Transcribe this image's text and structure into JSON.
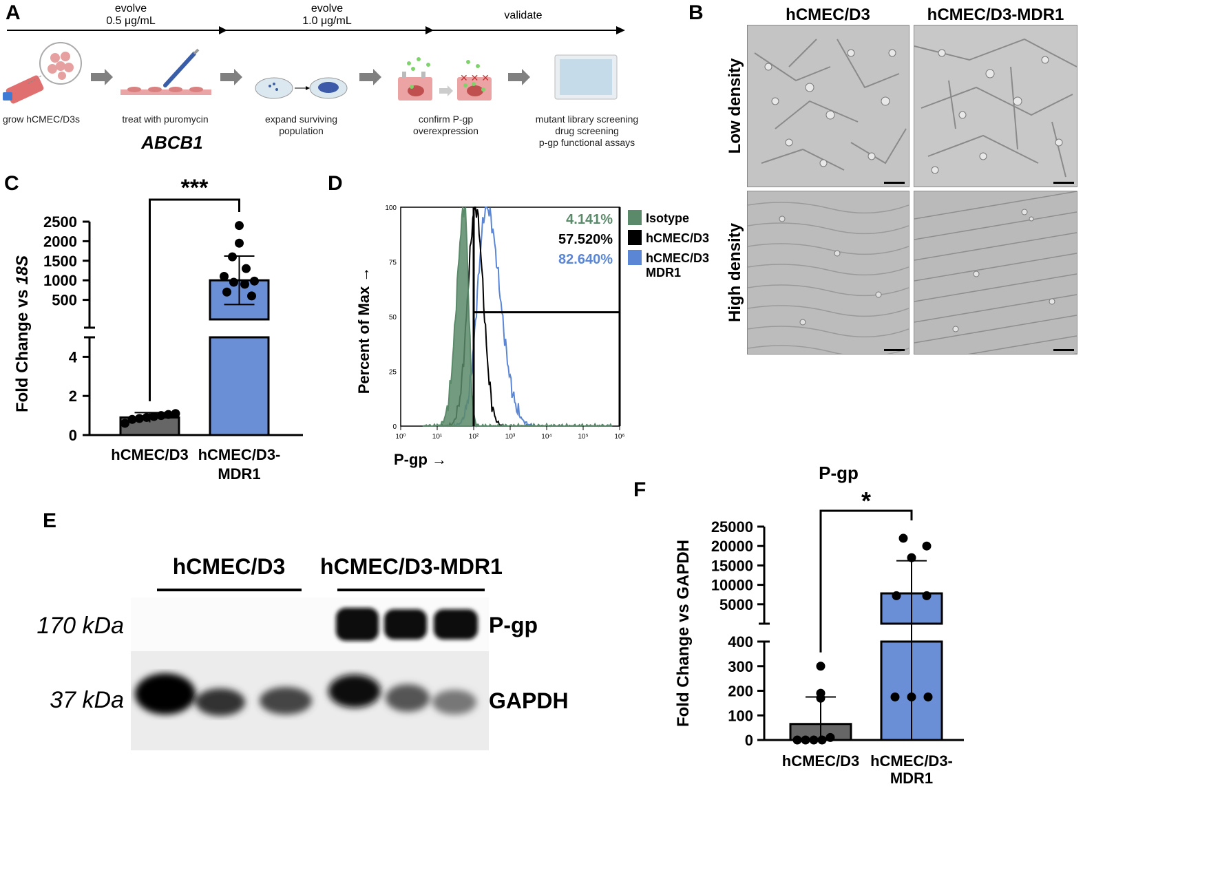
{
  "panels": {
    "a": "A",
    "b": "B",
    "c": "C",
    "d": "D",
    "e": "E",
    "f": "F"
  },
  "panel_a": {
    "timeline": [
      {
        "label1": "evolve",
        "label2": "0.5 μg/mL"
      },
      {
        "label1": "evolve",
        "label2": "1.0 μg/mL"
      },
      {
        "label1": "validate",
        "label2": ""
      }
    ],
    "steps": [
      "grow hCMEC/D3s",
      "treat with puromycin",
      "expand surviving\npopulation",
      "confirm P-gp\noverexpression",
      "mutant library screening\ndrug screening\np-gp functional assays"
    ],
    "gene": "ABCB1",
    "colors": {
      "cell": "#e9a5a5",
      "dish": "#c9dbe6",
      "cell_dark": "#c0504d",
      "plate": "#c6dbea",
      "dye": "#7ed36b",
      "arrow": "#808080"
    }
  },
  "panel_b": {
    "columns": [
      "hCMEC/D3",
      "hCMEC/D3-MDR1"
    ],
    "rows": [
      "Low density",
      "High density"
    ]
  },
  "chart_data": [
    {
      "panel": "C",
      "type": "bar",
      "ylabel": "Fold Change vs 18S",
      "categories": [
        "hCMEC/D3",
        "hCMEC/D3-MDR1"
      ],
      "values": [
        0.9,
        1000
      ],
      "errors": [
        0.25,
        620
      ],
      "points": [
        [
          0.6,
          0.8,
          0.85,
          0.9,
          0.95,
          1.0,
          1.05,
          1.1
        ],
        [
          1950,
          1600,
          1300,
          1100,
          980,
          950,
          900,
          700,
          600
        ]
      ],
      "axis_break": {
        "lower": [
          0,
          5
        ],
        "upper": [
          0,
          2500
        ]
      },
      "lower_ticks": [
        "0",
        "2",
        "4"
      ],
      "upper_ticks": [
        "500",
        "1000",
        "1500",
        "2000",
        "2500"
      ],
      "significance": "***",
      "colors": [
        "#666666",
        "#6b8fd6"
      ]
    },
    {
      "panel": "D",
      "type": "area",
      "xlabel": "P-gp →",
      "ylabel": "Percent of Max →",
      "xscale": "log",
      "xlim": [
        1,
        100000
      ],
      "ylim": [
        0,
        100
      ],
      "y_ticks": [
        "0",
        "25",
        "50",
        "75",
        "100"
      ],
      "x_ticks": [
        "10⁰",
        "10¹",
        "10²",
        "10³",
        "10⁴",
        "10⁵",
        "10⁶"
      ],
      "series": [
        {
          "name": "Isotype",
          "percent": "4.141%",
          "color": "#5a8a6a",
          "peak_log": 1.75
        },
        {
          "name": "hCMEC/D3",
          "percent": "57.520%",
          "color": "#000000",
          "peak_log": 2.05
        },
        {
          "name": "hCMEC/D3-MDR1",
          "percent": "82.640%",
          "color": "#5b86d6",
          "peak_log": 2.35
        }
      ],
      "gate_x_log": 2.0,
      "gate_y": 52
    },
    {
      "panel": "F",
      "type": "bar",
      "title": "P-gp",
      "ylabel": "Fold Change vs GAPDH",
      "categories": [
        "hCMEC/D3",
        "hCMEC/D3-MDR1"
      ],
      "values": [
        65,
        7800
      ],
      "errors": [
        110,
        8400
      ],
      "points": [
        [
          0,
          0,
          0,
          0,
          10,
          170,
          190,
          300
        ],
        [
          175,
          175,
          175,
          7200,
          7200,
          17000,
          20000,
          22000
        ]
      ],
      "lower_ticks": [
        "0",
        "100",
        "200",
        "300",
        "400"
      ],
      "upper_ticks": [
        "5000",
        "10000",
        "15000",
        "20000",
        "25000"
      ],
      "significance": "*",
      "colors": [
        "#666666",
        "#6b8fd6"
      ]
    }
  ],
  "panel_e": {
    "groups": [
      "hCMEC/D3",
      "hCMEC/D3-MDR1"
    ],
    "bands": [
      {
        "size": "170 kDa",
        "name": "P-gp"
      },
      {
        "size": "37 kDa",
        "name": "GAPDH"
      }
    ]
  }
}
